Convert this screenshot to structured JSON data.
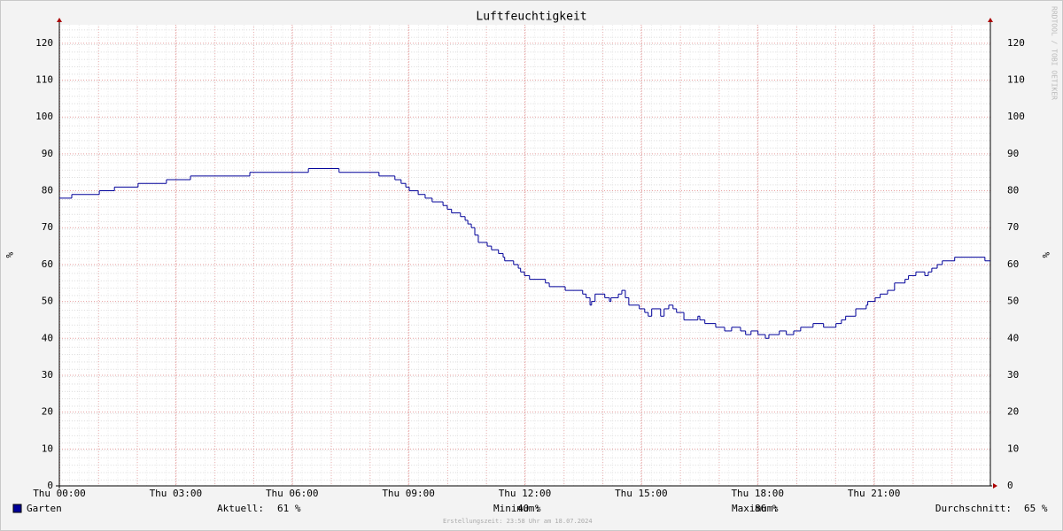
{
  "chart_data": {
    "type": "step-line",
    "title": "Luftfeuchtigkeit",
    "y_label": "%",
    "watermark": "RRDTOOL / TOBI OETIKER",
    "xlim": [
      0,
      24
    ],
    "xticks": [
      {
        "value": 0,
        "label": "Thu 00:00"
      },
      {
        "value": 3,
        "label": "Thu 03:00"
      },
      {
        "value": 6,
        "label": "Thu 06:00"
      },
      {
        "value": 9,
        "label": "Thu 09:00"
      },
      {
        "value": 12,
        "label": "Thu 12:00"
      },
      {
        "value": 15,
        "label": "Thu 15:00"
      },
      {
        "value": 18,
        "label": "Thu 18:00"
      },
      {
        "value": 21,
        "label": "Thu 21:00"
      }
    ],
    "ylim": [
      0,
      125
    ],
    "yticks": [
      0,
      10,
      20,
      30,
      40,
      50,
      60,
      70,
      80,
      90,
      100,
      110,
      120
    ],
    "y2lim": [
      0,
      125
    ],
    "y2ticks": [
      0,
      10,
      20,
      30,
      40,
      50,
      60,
      70,
      80,
      90,
      100,
      110,
      120
    ],
    "grid": true,
    "series": [
      {
        "name": "Garten",
        "color": "#000099",
        "x": [
          0,
          0.32,
          1.03,
          1.42,
          2.03,
          2.76,
          3.38,
          4.91,
          6.42,
          7.21,
          8.24,
          8.65,
          8.81,
          8.93,
          9.02,
          9.25,
          9.43,
          9.61,
          9.89,
          10.0,
          10.11,
          10.34,
          10.46,
          10.53,
          10.62,
          10.71,
          10.8,
          11.03,
          11.14,
          11.32,
          11.44,
          11.48,
          11.71,
          11.83,
          11.89,
          11.99,
          12.12,
          12.53,
          12.63,
          13.04,
          13.49,
          13.58,
          13.68,
          13.72,
          13.81,
          14.06,
          14.18,
          14.22,
          14.41,
          14.5,
          14.59,
          14.68,
          14.95,
          15.09,
          15.18,
          15.27,
          15.5,
          15.59,
          15.71,
          15.82,
          15.91,
          16.1,
          16.46,
          16.51,
          16.64,
          16.92,
          17.15,
          17.33,
          17.56,
          17.69,
          17.83,
          18.01,
          18.2,
          18.29,
          18.56,
          18.74,
          18.93,
          19.11,
          19.43,
          19.7,
          20.02,
          20.16,
          20.27,
          20.53,
          20.8,
          20.84,
          21.03,
          21.16,
          21.35,
          21.53,
          21.8,
          21.89,
          22.08,
          22.31,
          22.4,
          22.49,
          22.63,
          22.76,
          23.08,
          23.86
        ],
        "values": [
          78,
          79,
          80,
          81,
          82,
          83,
          84,
          85,
          86,
          85,
          84,
          83,
          82,
          81,
          80,
          79,
          78,
          77,
          76,
          75,
          74,
          73,
          72,
          71,
          70,
          68,
          66,
          65,
          64,
          63,
          62,
          61,
          60,
          59,
          58,
          57,
          56,
          55,
          54,
          53,
          52,
          51,
          49,
          50,
          52,
          51,
          50,
          51,
          52,
          53,
          51,
          49,
          48,
          47,
          46,
          48,
          46,
          48,
          49,
          48,
          47,
          45,
          46,
          45,
          44,
          43,
          42,
          43,
          42,
          41,
          42,
          41,
          40,
          41,
          42,
          41,
          42,
          43,
          44,
          43,
          44,
          45,
          46,
          48,
          49,
          50,
          51,
          52,
          53,
          55,
          56,
          57,
          58,
          57,
          58,
          59,
          60,
          61,
          62,
          61
        ]
      }
    ],
    "stats": {
      "labels": [
        "Aktuell:",
        "Minimum:",
        "Maximum:",
        "Durchschnitt:"
      ],
      "values": [
        61,
        40,
        86,
        65
      ],
      "value_labels": [
        "61 %",
        "40 %",
        "86 %",
        "65 %"
      ]
    },
    "footer": "Erstellungszeit: 23:58 Uhr am 18.07.2024"
  }
}
